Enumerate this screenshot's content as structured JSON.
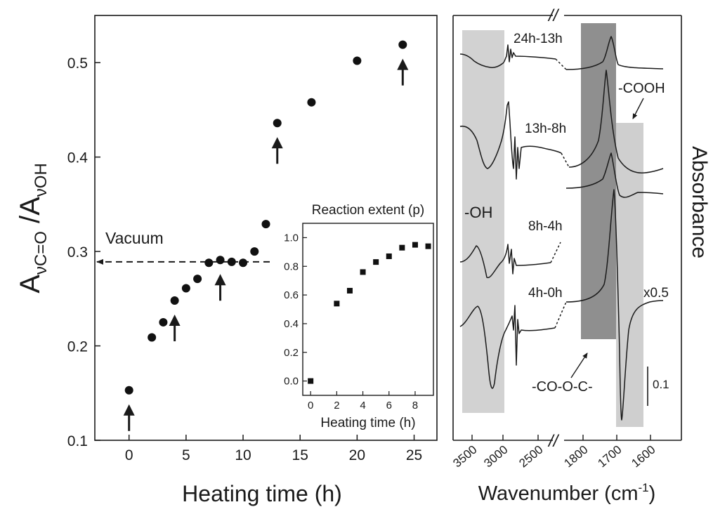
{
  "chart_data": [
    {
      "type": "scatter",
      "xlabel": "Heating time (h)",
      "ylabel_main": "A",
      "ylabel_sub1": "νC=O",
      "ylabel_sep": " /A",
      "ylabel_sub2": "νOH",
      "xlim": [
        -3,
        27
      ],
      "ylim": [
        0.1,
        0.55
      ],
      "xticks": [
        0,
        5,
        10,
        15,
        20,
        25
      ],
      "yticks": [
        0.1,
        0.2,
        0.3,
        0.4,
        0.5
      ],
      "points": [
        {
          "x": 0,
          "y": 0.153
        },
        {
          "x": 2,
          "y": 0.209
        },
        {
          "x": 3,
          "y": 0.225
        },
        {
          "x": 4,
          "y": 0.248
        },
        {
          "x": 5,
          "y": 0.261
        },
        {
          "x": 6,
          "y": 0.271
        },
        {
          "x": 7,
          "y": 0.288
        },
        {
          "x": 8,
          "y": 0.291
        },
        {
          "x": 9,
          "y": 0.289
        },
        {
          "x": 10,
          "y": 0.288
        },
        {
          "x": 11,
          "y": 0.3
        },
        {
          "x": 12,
          "y": 0.329
        },
        {
          "x": 13,
          "y": 0.436
        },
        {
          "x": 16,
          "y": 0.458
        },
        {
          "x": 20,
          "y": 0.502
        },
        {
          "x": 24,
          "y": 0.519
        }
      ],
      "arrow_times": [
        0,
        4,
        8,
        13,
        24
      ],
      "vacuum_label": "Vacuum",
      "vacuum_y": 0.289,
      "grid": false
    },
    {
      "type": "scatter",
      "title": "Reaction extent (p)",
      "xlabel": "Heating time (h)",
      "xlim": [
        -0.6,
        9.4
      ],
      "ylim": [
        -0.1,
        1.1
      ],
      "xticks": [
        0,
        2,
        4,
        6,
        8
      ],
      "yticks": [
        0.0,
        0.2,
        0.4,
        0.6,
        0.8,
        1.0
      ],
      "points": [
        {
          "x": 0,
          "y": 0.0
        },
        {
          "x": 2,
          "y": 0.54
        },
        {
          "x": 3,
          "y": 0.63
        },
        {
          "x": 4,
          "y": 0.76
        },
        {
          "x": 5,
          "y": 0.83
        },
        {
          "x": 6,
          "y": 0.87
        },
        {
          "x": 7,
          "y": 0.93
        },
        {
          "x": 8,
          "y": 0.95
        },
        {
          "x": 9,
          "y": 0.94
        }
      ],
      "grid": false
    },
    {
      "type": "line",
      "xlabel": "Wavenumber (cm",
      "xlabel_sup": "-1",
      "xlabel_end": ")",
      "ylabel": "Absorbance",
      "xticks_left": [
        "3500",
        "3000",
        "2500"
      ],
      "xticks_right": [
        "1800",
        "1700",
        "1600"
      ],
      "series_labels": [
        "24h-13h",
        "13h-8h",
        "8h-4h",
        "4h-0h"
      ],
      "scale_label": "x0.5",
      "scale_bar_label": "0.1",
      "band_labels": {
        "oh": "-OH",
        "cooh": "-COOH",
        "anhydride": "-CO-O-C-"
      },
      "break_mark": "//"
    }
  ]
}
